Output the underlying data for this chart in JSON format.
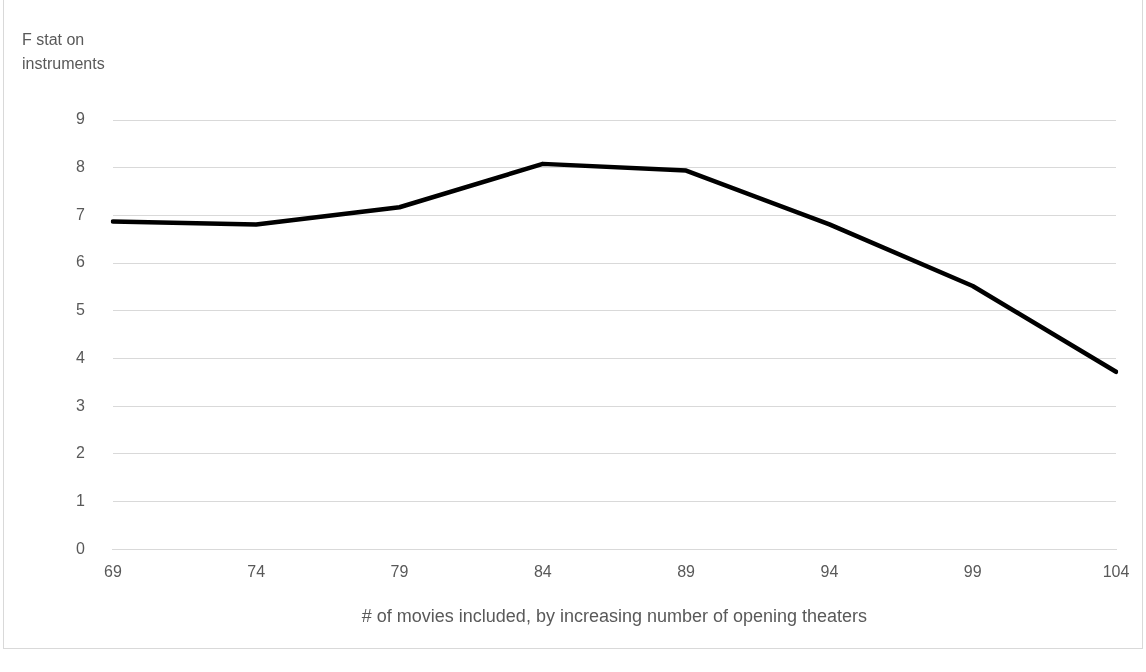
{
  "chart_data": {
    "type": "line",
    "ylabel": "F stat on instruments",
    "xlabel": "# of movies included, by increasing number of opening theaters",
    "categories": [
      "69",
      "74",
      "79",
      "84",
      "89",
      "94",
      "99",
      "104"
    ],
    "series": [
      {
        "color": "#000000",
        "values": [
          6.87,
          6.81,
          7.17,
          8.08,
          7.94,
          6.81,
          5.52,
          3.72
        ]
      }
    ],
    "ylim": [
      0,
      9
    ],
    "yticks": [
      0,
      1,
      2,
      3,
      4,
      5,
      6,
      7,
      8,
      9
    ],
    "grid": "y",
    "legend": false,
    "marker": "none",
    "line_style": "solid"
  }
}
